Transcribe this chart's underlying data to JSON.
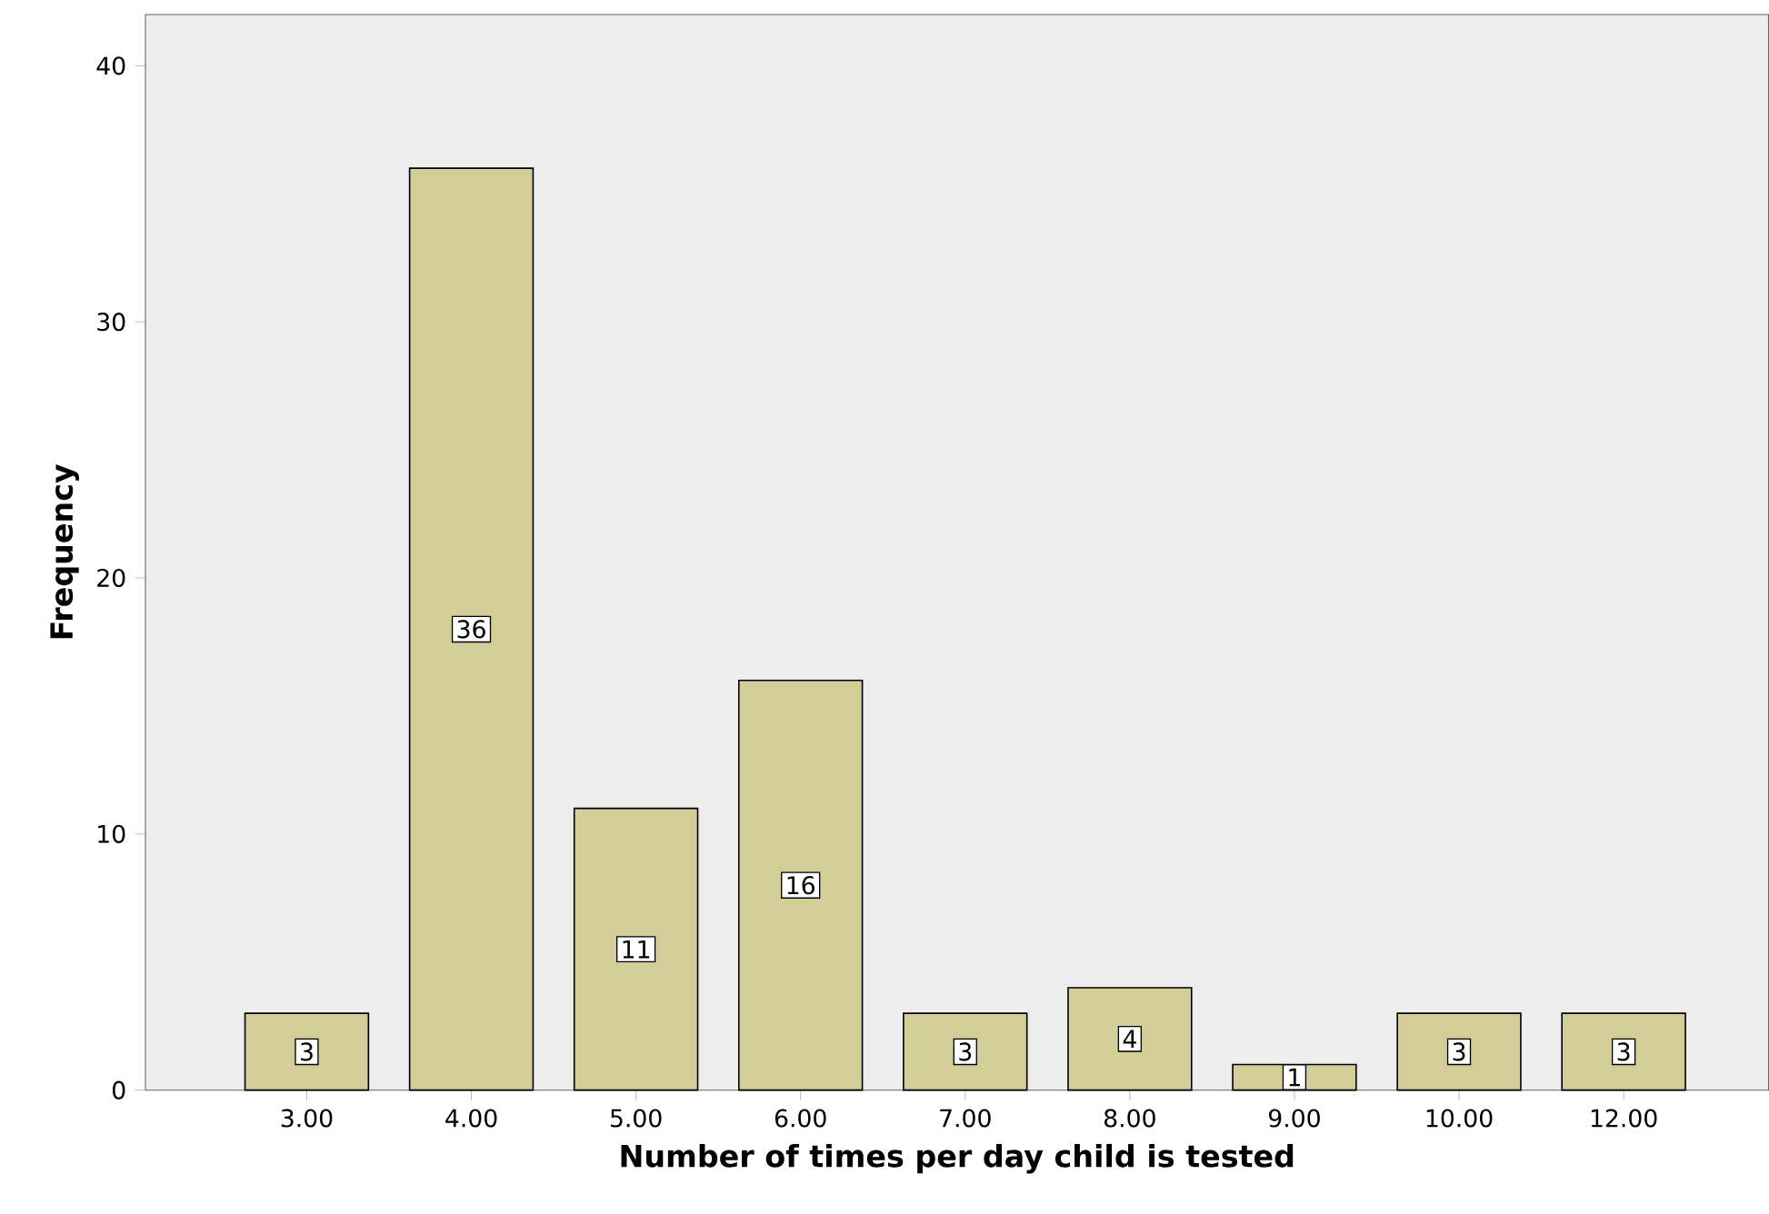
{
  "chart_data": {
    "type": "bar",
    "xlabel": "Number of times per day child is tested",
    "ylabel": "Frequency",
    "categories": [
      "3.00",
      "4.00",
      "5.00",
      "6.00",
      "7.00",
      "8.00",
      "9.00",
      "10.00",
      "12.00"
    ],
    "values": [
      3,
      36,
      11,
      16,
      3,
      4,
      1,
      3,
      3
    ],
    "color": "#d3ce97",
    "ylim": [
      0,
      42
    ],
    "yticks": [
      0,
      10,
      20,
      30,
      40
    ],
    "data_labels": true
  }
}
